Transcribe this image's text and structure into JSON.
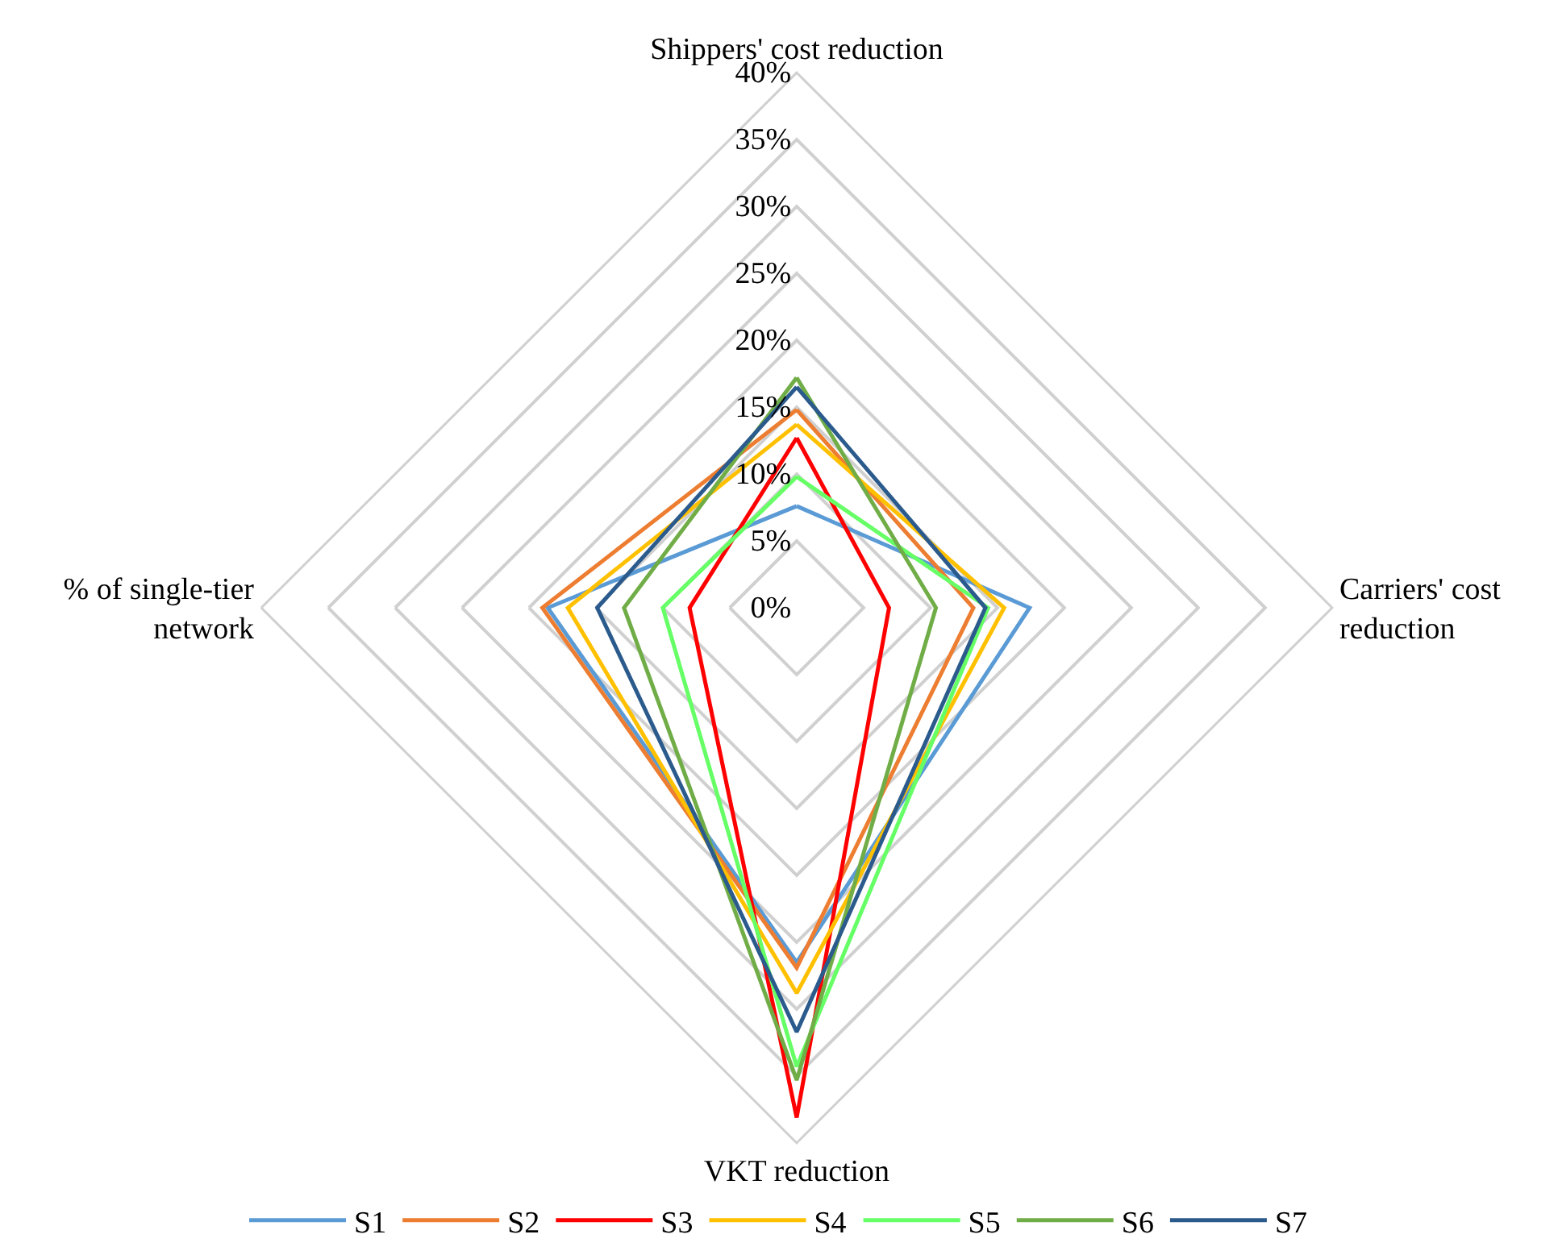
{
  "chart_data": {
    "type": "radar",
    "categories": [
      "Shippers' cost reduction",
      "Carriers' cost reduction",
      "VKT reduction",
      "% of single-tier network"
    ],
    "series": [
      {
        "name": "S1",
        "color": "#5b9bd5",
        "values": [
          7.6,
          17.4,
          26.5,
          18.6
        ]
      },
      {
        "name": "S2",
        "color": "#ed7d31",
        "values": [
          14.8,
          13.2,
          26.9,
          19.0
        ]
      },
      {
        "name": "S3",
        "color": "#ff0000",
        "values": [
          12.7,
          6.9,
          38.1,
          8.0
        ]
      },
      {
        "name": "S4",
        "color": "#ffc000",
        "values": [
          13.7,
          15.5,
          28.8,
          17.1
        ]
      },
      {
        "name": "S5",
        "color": "#66ff66",
        "values": [
          9.8,
          14.3,
          34.3,
          10.0
        ]
      },
      {
        "name": "S6",
        "color": "#70ad47",
        "values": [
          17.2,
          10.4,
          35.3,
          12.9
        ]
      },
      {
        "name": "S7",
        "color": "#2b5a8c",
        "values": [
          16.5,
          14.1,
          31.7,
          14.9
        ]
      }
    ],
    "ylim": [
      0,
      40
    ],
    "yticks": [
      {
        "value": 0,
        "label": "0%"
      },
      {
        "value": 5,
        "label": "5%"
      },
      {
        "value": 10,
        "label": "10%"
      },
      {
        "value": 15,
        "label": "15%"
      },
      {
        "value": 20,
        "label": "20%"
      },
      {
        "value": 25,
        "label": "25%"
      },
      {
        "value": 30,
        "label": "30%"
      },
      {
        "value": 35,
        "label": "35%"
      },
      {
        "value": 40,
        "label": "40%"
      }
    ],
    "grid": true,
    "legend": "bottom"
  }
}
